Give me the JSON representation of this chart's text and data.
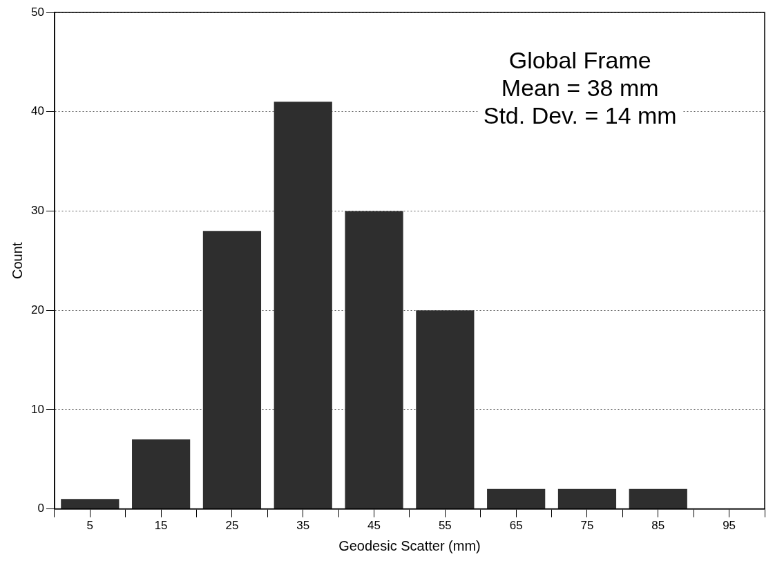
{
  "chart_data": {
    "type": "histogram",
    "bins": [
      0,
      10,
      20,
      30,
      40,
      50,
      60,
      70,
      80,
      90,
      100
    ],
    "values": [
      1,
      7,
      28,
      41,
      30,
      20,
      2,
      2,
      2,
      0
    ],
    "color": "#2e2e2e",
    "xlabel": "Geodesic Scatter (mm)",
    "ylabel": "Count",
    "xlim": [
      0,
      100
    ],
    "xticks": [
      {
        "value": 0,
        "label": null
      },
      {
        "value": 5,
        "label": "5"
      },
      {
        "value": 10,
        "label": null
      },
      {
        "value": 15,
        "label": "15"
      },
      {
        "value": 20,
        "label": null
      },
      {
        "value": 25,
        "label": "25"
      },
      {
        "value": 30,
        "label": null
      },
      {
        "value": 35,
        "label": "35"
      },
      {
        "value": 40,
        "label": null
      },
      {
        "value": 45,
        "label": "45"
      },
      {
        "value": 50,
        "label": null
      },
      {
        "value": 55,
        "label": "55"
      },
      {
        "value": 60,
        "label": null
      },
      {
        "value": 65,
        "label": "65"
      },
      {
        "value": 70,
        "label": null
      },
      {
        "value": 75,
        "label": "75"
      },
      {
        "value": 80,
        "label": null
      },
      {
        "value": 85,
        "label": "85"
      },
      {
        "value": 90,
        "label": null
      },
      {
        "value": 95,
        "label": "95"
      },
      {
        "value": 100,
        "label": null
      }
    ],
    "ylim": [
      0,
      50
    ],
    "yticks": [
      0,
      10,
      20,
      30,
      40,
      50
    ],
    "grid": "y",
    "annotations": [
      "Global Frame",
      "Mean = 38 mm",
      "Std. Dev. = 14 mm"
    ]
  }
}
